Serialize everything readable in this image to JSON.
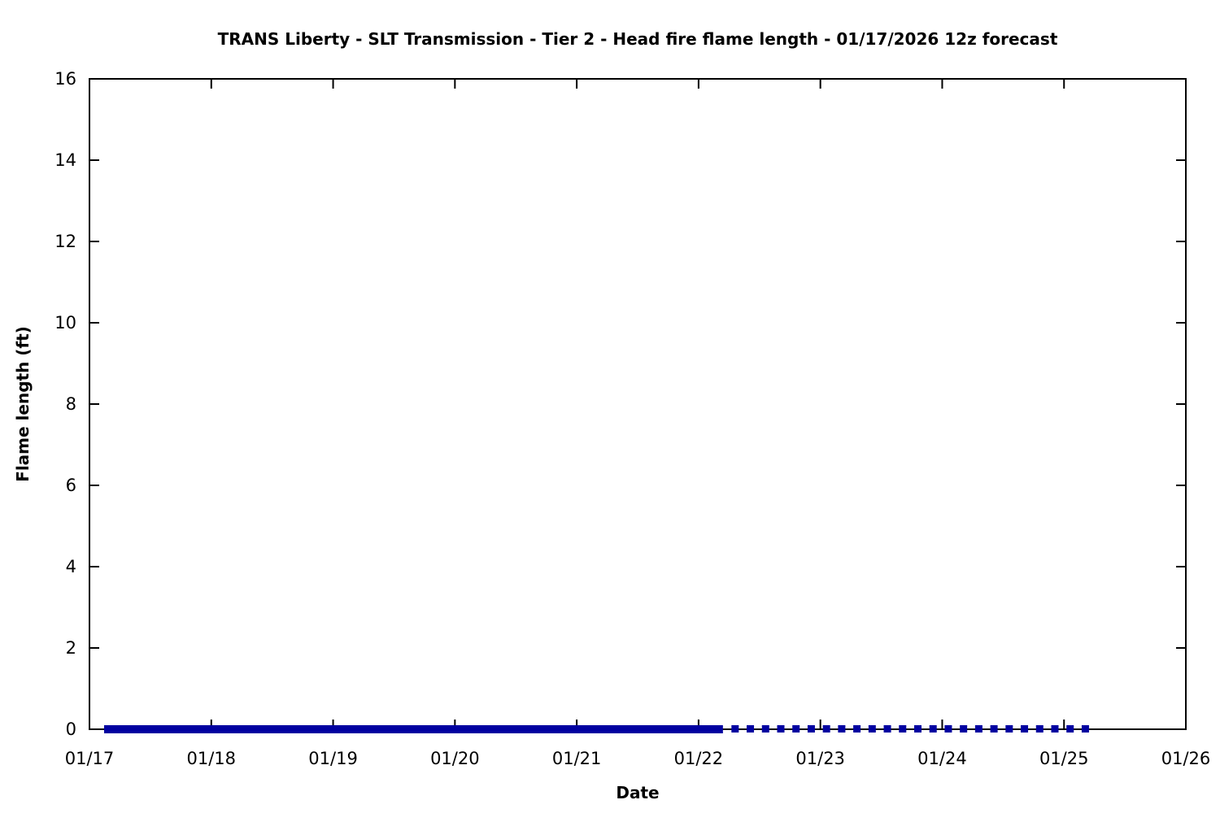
{
  "chart_data": {
    "type": "line",
    "title": "TRANS Liberty - SLT Transmission - Tier 2 - Head fire flame length - 01/17/2026 12z forecast",
    "xlabel": "Date",
    "ylabel": "Flame length (ft)",
    "xlim": [
      17,
      26
    ],
    "ylim": [
      0,
      16
    ],
    "grid": false,
    "legend": "none",
    "xticks": [
      {
        "value": 17,
        "label": "01/17"
      },
      {
        "value": 18,
        "label": "01/18"
      },
      {
        "value": 19,
        "label": "01/19"
      },
      {
        "value": 20,
        "label": "01/20"
      },
      {
        "value": 21,
        "label": "01/21"
      },
      {
        "value": 22,
        "label": "01/22"
      },
      {
        "value": 23,
        "label": "01/23"
      },
      {
        "value": 24,
        "label": "01/24"
      },
      {
        "value": 25,
        "label": "01/25"
      },
      {
        "value": 26,
        "label": "01/26"
      }
    ],
    "yticks": [
      0,
      2,
      4,
      6,
      8,
      10,
      12,
      14,
      16
    ],
    "line_color": "#0000A0",
    "series": [
      {
        "label": "solid segment (flame length = 0 ft)",
        "style": "solid",
        "color": "#0000A0",
        "y_value": 0,
        "x_start": 17.12,
        "x_end": 22.2
      },
      {
        "label": "dashed segment (flame length = 0 ft)",
        "style": "square-dash",
        "color": "#0000A0",
        "y_value": 0,
        "x_start": 22.3,
        "x_end": 25.18,
        "marker_interval_days": 0.125
      }
    ]
  }
}
